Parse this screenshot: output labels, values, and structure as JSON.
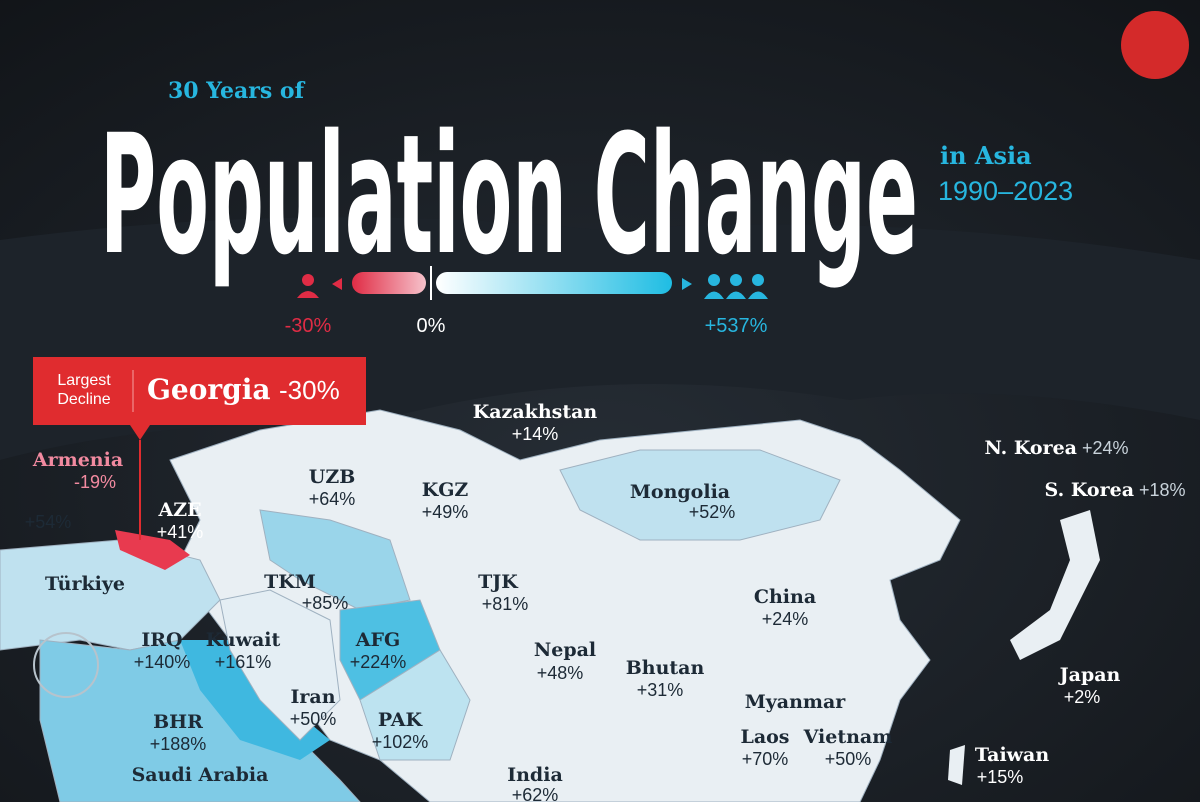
{
  "header": {
    "kicker": "30 Years of",
    "title": "Population Change",
    "region": "in Asia",
    "period": "1990–2023"
  },
  "legend": {
    "min": "-30%",
    "mid": "0%",
    "max": "+537%"
  },
  "callout": {
    "label": [
      "Largest",
      "Decline"
    ],
    "country": "Georgia",
    "value": "-30%"
  },
  "countries": [
    {
      "name": "Kazakhstan",
      "value": "+14%"
    },
    {
      "name": "Armenia",
      "value": "-19%"
    },
    {
      "name": "AZE",
      "value": "+41%"
    },
    {
      "name": "UZB",
      "value": "+64%"
    },
    {
      "name": "KGZ",
      "value": "+49%"
    },
    {
      "name": "Mongolia",
      "value": "+52%"
    },
    {
      "name": "N. Korea",
      "value": "+24%"
    },
    {
      "name": "S. Korea",
      "value": "+18%"
    },
    {
      "name": "Türkiye",
      "value": "+54%"
    },
    {
      "name": "TKM",
      "value": "+85%"
    },
    {
      "name": "TJK",
      "value": "+81%"
    },
    {
      "name": "China",
      "value": "+24%"
    },
    {
      "name": "IRQ",
      "value": "+140%"
    },
    {
      "name": "Kuwait",
      "value": "+161%"
    },
    {
      "name": "AFG",
      "value": "+224%"
    },
    {
      "name": "Nepal",
      "value": "+48%"
    },
    {
      "name": "Bhutan",
      "value": "+31%"
    },
    {
      "name": "Japan",
      "value": "+2%"
    },
    {
      "name": "Iran",
      "value": "+50%"
    },
    {
      "name": "Myanmar"
    },
    {
      "name": "BHR",
      "value": "+188%"
    },
    {
      "name": "PAK",
      "value": "+102%"
    },
    {
      "name": "Laos",
      "value": "+70%"
    },
    {
      "name": "Vietnam",
      "value": "+50%"
    },
    {
      "name": "Taiwan",
      "value": "+15%"
    },
    {
      "name": "Saudi Arabia"
    },
    {
      "name": "India",
      "value": "+62%"
    }
  ]
}
